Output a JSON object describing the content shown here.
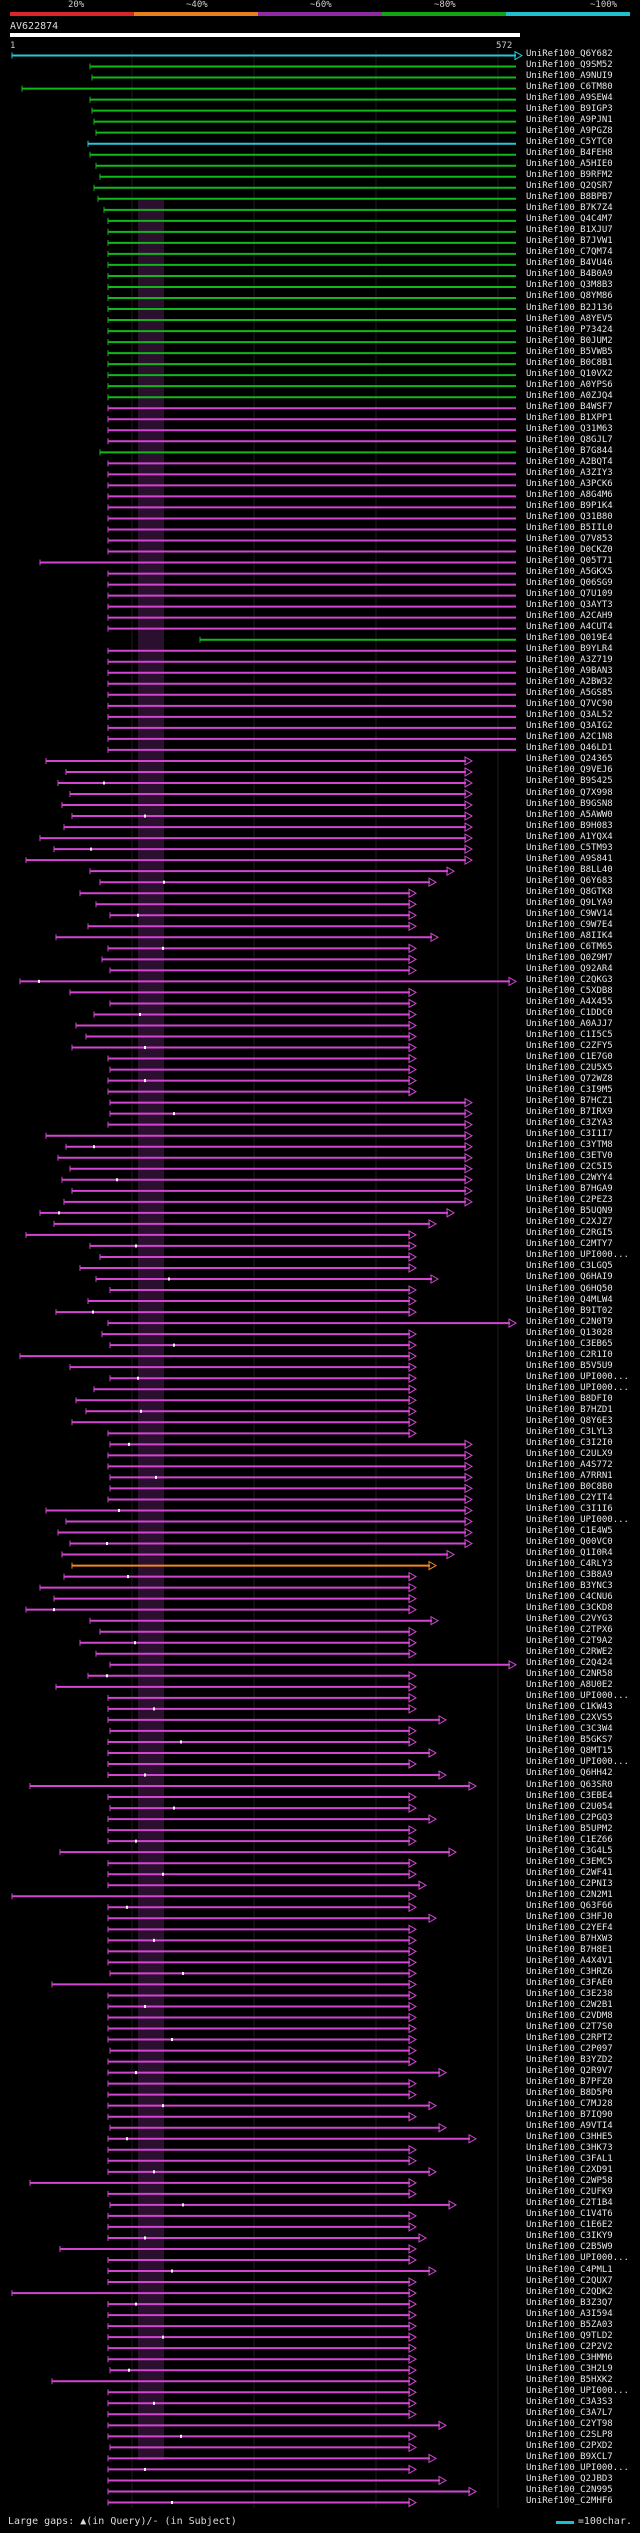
{
  "header": {
    "percent_labels": [
      "20%",
      "~40%",
      "~60%",
      "~80%",
      "~100%"
    ],
    "band_colors": [
      "#d9262c",
      "#e6821e",
      "#8e2aa4",
      "#12a414",
      "#1fbfcb"
    ],
    "query_id": "AV622874",
    "scale_start": "1",
    "scale_end": "572"
  },
  "colors": {
    "cyan": "#2bc6d6",
    "green": "#12b81a",
    "magenta": "#d246d2",
    "orange": "#f08820",
    "dark": "#6a2f72"
  },
  "hits": [
    {
      "label": "UniRef100_Q6Y682",
      "c": "cyan"
    },
    {
      "label": "UniRef100_Q9SM52",
      "c": "green"
    },
    {
      "label": "UniRef100_A9NUI9",
      "c": "green"
    },
    {
      "label": "UniRef100_C6TM80",
      "c": "green"
    },
    {
      "label": "UniRef100_A9SEW4",
      "c": "green"
    },
    {
      "label": "UniRef100_B9IGP3",
      "c": "green"
    },
    {
      "label": "UniRef100_A9PJN1",
      "c": "green"
    },
    {
      "label": "UniRef100_A9PGZ8",
      "c": "green"
    },
    {
      "label": "UniRef100_C5YTC0",
      "c": "cyan"
    },
    {
      "label": "UniRef100_B4FEH8",
      "c": "green"
    },
    {
      "label": "UniRef100_A5HIE0",
      "c": "green"
    },
    {
      "label": "UniRef100_B9RFM2",
      "c": "green"
    },
    {
      "label": "UniRef100_Q2QSR7",
      "c": "green"
    },
    {
      "label": "UniRef100_B8BPB7",
      "c": "green"
    },
    {
      "label": "UniRef100_B7K7Z4",
      "c": "green"
    },
    {
      "label": "UniRef100_Q4C4M7",
      "c": "green"
    },
    {
      "label": "UniRef100_B1XJU7",
      "c": "green"
    },
    {
      "label": "UniRef100_B7JVW1",
      "c": "green"
    },
    {
      "label": "UniRef100_C7QM74",
      "c": "green"
    },
    {
      "label": "UniRef100_B4VU46",
      "c": "green"
    },
    {
      "label": "UniRef100_B4B0A9",
      "c": "green"
    },
    {
      "label": "UniRef100_Q3M8B3",
      "c": "green"
    },
    {
      "label": "UniRef100_Q8YM86",
      "c": "green"
    },
    {
      "label": "UniRef100_B2J136",
      "c": "green"
    },
    {
      "label": "UniRef100_A8YEV5",
      "c": "green"
    },
    {
      "label": "UniRef100_P73424",
      "c": "green"
    },
    {
      "label": "UniRef100_B0JUM2",
      "c": "green"
    },
    {
      "label": "UniRef100_B5VWB5",
      "c": "green"
    },
    {
      "label": "UniRef100_B0C8B1",
      "c": "green"
    },
    {
      "label": "UniRef100_Q10VX2",
      "c": "green"
    },
    {
      "label": "UniRef100_A0YPS6",
      "c": "green"
    },
    {
      "label": "UniRef100_A0ZJQ4",
      "c": "green"
    },
    {
      "label": "UniRef100_B4WSF7",
      "c": "magenta"
    },
    {
      "label": "UniRef100_B1XPP1",
      "c": "magenta"
    },
    {
      "label": "UniRef100_Q31M63",
      "c": "magenta"
    },
    {
      "label": "UniRef100_Q8GJL7",
      "c": "magenta"
    },
    {
      "label": "UniRef100_B7G844",
      "c": "green"
    },
    {
      "label": "UniRef100_A2BQT4",
      "c": "magenta"
    },
    {
      "label": "UniRef100_A3ZIY3",
      "c": "magenta"
    },
    {
      "label": "UniRef100_A3PCK6",
      "c": "magenta"
    },
    {
      "label": "UniRef100_A8G4M6",
      "c": "magenta"
    },
    {
      "label": "UniRef100_B9P1K4",
      "c": "magenta"
    },
    {
      "label": "UniRef100_Q31B80",
      "c": "magenta"
    },
    {
      "label": "UniRef100_B5IIL0",
      "c": "magenta"
    },
    {
      "label": "UniRef100_Q7V853",
      "c": "magenta"
    },
    {
      "label": "UniRef100_D0CKZ0",
      "c": "magenta"
    },
    {
      "label": "UniRef100_Q05T71",
      "c": "magenta"
    },
    {
      "label": "UniRef100_A5GKX5",
      "c": "magenta"
    },
    {
      "label": "UniRef100_Q06SG9",
      "c": "magenta"
    },
    {
      "label": "UniRef100_Q7U109",
      "c": "magenta"
    },
    {
      "label": "UniRef100_Q3AYT3",
      "c": "magenta"
    },
    {
      "label": "UniRef100_A2CAH9",
      "c": "magenta"
    },
    {
      "label": "UniRef100_A4CUT4",
      "c": "magenta"
    },
    {
      "label": "UniRef100_Q019E4",
      "c": "green"
    },
    {
      "label": "UniRef100_B9YLR4",
      "c": "magenta"
    },
    {
      "label": "UniRef100_A3Z719",
      "c": "magenta"
    },
    {
      "label": "UniRef100_A9BAN3",
      "c": "magenta"
    },
    {
      "label": "UniRef100_A2BW32",
      "c": "magenta"
    },
    {
      "label": "UniRef100_A5GS85",
      "c": "magenta"
    },
    {
      "label": "UniRef100_Q7VC90",
      "c": "magenta"
    },
    {
      "label": "UniRef100_Q3AL52",
      "c": "magenta"
    },
    {
      "label": "UniRef100_Q3AIG2",
      "c": "magenta"
    },
    {
      "label": "UniRef100_A2C1N8",
      "c": "magenta"
    },
    {
      "label": "UniRef100_Q46LD1",
      "c": "magenta"
    },
    {
      "label": "UniRef100_Q24365",
      "c": "magenta"
    },
    {
      "label": "UniRef100_Q9VEJ6",
      "c": "magenta"
    },
    {
      "label": "UniRef100_B9S425",
      "c": "magenta"
    },
    {
      "label": "UniRef100_Q7X998",
      "c": "magenta"
    },
    {
      "label": "UniRef100_B9GSN8",
      "c": "magenta"
    },
    {
      "label": "UniRef100_A5AWW0",
      "c": "magenta"
    },
    {
      "label": "UniRef100_B9H083",
      "c": "magenta"
    },
    {
      "label": "UniRef100_A1YQX4",
      "c": "magenta"
    },
    {
      "label": "UniRef100_C5TM93",
      "c": "magenta"
    },
    {
      "label": "UniRef100_A9S841",
      "c": "magenta"
    },
    {
      "label": "UniRef100_B8LL40",
      "c": "magenta"
    },
    {
      "label": "UniRef100_Q6Y683",
      "c": "magenta"
    },
    {
      "label": "UniRef100_Q8GTK8",
      "c": "magenta"
    },
    {
      "label": "UniRef100_Q9LYA9",
      "c": "magenta"
    },
    {
      "label": "UniRef100_C9WV14",
      "c": "magenta"
    },
    {
      "label": "UniRef100_C9W7E4",
      "c": "magenta"
    },
    {
      "label": "UniRef100_A8IIK4",
      "c": "magenta"
    },
    {
      "label": "UniRef100_C6TM65",
      "c": "magenta"
    },
    {
      "label": "UniRef100_Q0Z9M7",
      "c": "magenta"
    },
    {
      "label": "UniRef100_Q92AR4",
      "c": "magenta"
    },
    {
      "label": "UniRef100_C2QKG3",
      "c": "magenta"
    },
    {
      "label": "UniRef100_C5XDB8",
      "c": "magenta"
    },
    {
      "label": "UniRef100_A4X455",
      "c": "magenta"
    },
    {
      "label": "UniRef100_C1DDC0",
      "c": "magenta"
    },
    {
      "label": "UniRef100_A0AJJ7",
      "c": "magenta"
    },
    {
      "label": "UniRef100_C1I5C5",
      "c": "magenta"
    },
    {
      "label": "UniRef100_C2ZFY5",
      "c": "magenta"
    },
    {
      "label": "UniRef100_C1E7G0",
      "c": "magenta"
    },
    {
      "label": "UniRef100_C2U5X5",
      "c": "magenta"
    },
    {
      "label": "UniRef100_Q72WZ8",
      "c": "magenta"
    },
    {
      "label": "UniRef100_C3I9M5",
      "c": "magenta"
    },
    {
      "label": "UniRef100_B7HCZ1",
      "c": "magenta"
    },
    {
      "label": "UniRef100_B7IRX9",
      "c": "magenta"
    },
    {
      "label": "UniRef100_C3ZYA3",
      "c": "magenta"
    },
    {
      "label": "UniRef100_C3I1I7",
      "c": "magenta"
    },
    {
      "label": "UniRef100_C3YTM8",
      "c": "magenta"
    },
    {
      "label": "UniRef100_C3ETV0",
      "c": "magenta"
    },
    {
      "label": "UniRef100_C2C5I5",
      "c": "magenta"
    },
    {
      "label": "UniRef100_C2WYY4",
      "c": "magenta"
    },
    {
      "label": "UniRef100_B7HGA9",
      "c": "magenta"
    },
    {
      "label": "UniRef100_C2PEZ3",
      "c": "magenta"
    },
    {
      "label": "UniRef100_B5UQN9",
      "c": "magenta"
    },
    {
      "label": "UniRef100_C2XJZ7",
      "c": "magenta"
    },
    {
      "label": "UniRef100_C2RGI5",
      "c": "magenta"
    },
    {
      "label": "UniRef100_C2MTY7",
      "c": "magenta"
    },
    {
      "label": "UniRef100_UPI000...",
      "c": "magenta"
    },
    {
      "label": "UniRef100_C3LGQ5",
      "c": "magenta"
    },
    {
      "label": "UniRef100_Q6HAI9",
      "c": "magenta"
    },
    {
      "label": "UniRef100_Q6HQ50",
      "c": "magenta"
    },
    {
      "label": "UniRef100_Q4MLW4",
      "c": "magenta"
    },
    {
      "label": "UniRef100_B9IT02",
      "c": "magenta"
    },
    {
      "label": "UniRef100_C2N0T9",
      "c": "magenta"
    },
    {
      "label": "UniRef100_Q13028",
      "c": "magenta"
    },
    {
      "label": "UniRef100_C3EB65",
      "c": "magenta"
    },
    {
      "label": "UniRef100_C2R1I0",
      "c": "magenta"
    },
    {
      "label": "UniRef100_B5V5U9",
      "c": "magenta"
    },
    {
      "label": "UniRef100_UPI000...",
      "c": "magenta"
    },
    {
      "label": "UniRef100_UPI000...",
      "c": "magenta"
    },
    {
      "label": "UniRef100_B8DFI0",
      "c": "magenta"
    },
    {
      "label": "UniRef100_B7HZD1",
      "c": "magenta"
    },
    {
      "label": "UniRef100_Q8Y6E3",
      "c": "magenta"
    },
    {
      "label": "UniRef100_C3LYL3",
      "c": "magenta"
    },
    {
      "label": "UniRef100_C3I2I0",
      "c": "magenta"
    },
    {
      "label": "UniRef100_C2ULX9",
      "c": "magenta"
    },
    {
      "label": "UniRef100_A4S772",
      "c": "magenta"
    },
    {
      "label": "UniRef100_A7RRN1",
      "c": "magenta"
    },
    {
      "label": "UniRef100_B0C8B0",
      "c": "magenta"
    },
    {
      "label": "UniRef100_C2YIT4",
      "c": "magenta"
    },
    {
      "label": "UniRef100_C3I1I6",
      "c": "magenta"
    },
    {
      "label": "UniRef100_UPI000...",
      "c": "magenta"
    },
    {
      "label": "UniRef100_C1E4W5",
      "c": "magenta"
    },
    {
      "label": "UniRef100_Q00VC0",
      "c": "magenta"
    },
    {
      "label": "UniRef100_Q1I0R4",
      "c": "magenta"
    },
    {
      "label": "UniRef100_C4RLY3",
      "c": "orange"
    },
    {
      "label": "UniRef100_C3B8A9",
      "c": "magenta"
    },
    {
      "label": "UniRef100_B3YNC3",
      "c": "magenta"
    },
    {
      "label": "UniRef100_C4CNU6",
      "c": "magenta"
    },
    {
      "label": "UniRef100_C3CKD8",
      "c": "magenta"
    },
    {
      "label": "UniRef100_C2VYG3",
      "c": "magenta"
    },
    {
      "label": "UniRef100_C2TPX6",
      "c": "magenta"
    },
    {
      "label": "UniRef100_C2T9A2",
      "c": "magenta"
    },
    {
      "label": "UniRef100_C2RWE2",
      "c": "magenta"
    },
    {
      "label": "UniRef100_C2Q424",
      "c": "magenta"
    },
    {
      "label": "UniRef100_C2NR58",
      "c": "magenta"
    },
    {
      "label": "UniRef100_A8U0E2",
      "c": "magenta"
    },
    {
      "label": "UniRef100_UPI000...",
      "c": "magenta"
    },
    {
      "label": "UniRef100_C1KW43",
      "c": "magenta"
    },
    {
      "label": "UniRef100_C2XVS5",
      "c": "magenta"
    },
    {
      "label": "UniRef100_C3C3W4",
      "c": "magenta"
    },
    {
      "label": "UniRef100_B5GKS7",
      "c": "magenta"
    },
    {
      "label": "UniRef100_Q8MT15",
      "c": "magenta"
    },
    {
      "label": "UniRef100_UPI000...",
      "c": "magenta"
    },
    {
      "label": "UniRef100_Q6HH42",
      "c": "magenta"
    },
    {
      "label": "UniRef100_Q63SR0",
      "c": "magenta"
    },
    {
      "label": "UniRef100_C3EBE4",
      "c": "magenta"
    },
    {
      "label": "UniRef100_C2U054",
      "c": "magenta"
    },
    {
      "label": "UniRef100_C2PGQ3",
      "c": "magenta"
    },
    {
      "label": "UniRef100_B5UPM2",
      "c": "magenta"
    },
    {
      "label": "UniRef100_C1EZ66",
      "c": "magenta"
    },
    {
      "label": "UniRef100_C3G4L5",
      "c": "magenta"
    },
    {
      "label": "UniRef100_C3EMC5",
      "c": "magenta"
    },
    {
      "label": "UniRef100_C2WF41",
      "c": "magenta"
    },
    {
      "label": "UniRef100_C2PNI3",
      "c": "magenta"
    },
    {
      "label": "UniRef100_C2N2M1",
      "c": "magenta"
    },
    {
      "label": "UniRef100_Q63F66",
      "c": "magenta"
    },
    {
      "label": "UniRef100_C3HFJ0",
      "c": "magenta"
    },
    {
      "label": "UniRef100_C2YEF4",
      "c": "magenta"
    },
    {
      "label": "UniRef100_B7HXW3",
      "c": "magenta"
    },
    {
      "label": "UniRef100_B7H8E1",
      "c": "magenta"
    },
    {
      "label": "UniRef100_A4X4V1",
      "c": "magenta"
    },
    {
      "label": "UniRef100_C3HRZ6",
      "c": "magenta"
    },
    {
      "label": "UniRef100_C3FAE0",
      "c": "magenta"
    },
    {
      "label": "UniRef100_C3E238",
      "c": "magenta"
    },
    {
      "label": "UniRef100_C2W2B1",
      "c": "magenta"
    },
    {
      "label": "UniRef100_C2VDM8",
      "c": "magenta"
    },
    {
      "label": "UniRef100_C2T7S0",
      "c": "magenta"
    },
    {
      "label": "UniRef100_C2RPT2",
      "c": "magenta"
    },
    {
      "label": "UniRef100_C2P097",
      "c": "magenta"
    },
    {
      "label": "UniRef100_B3YZD2",
      "c": "magenta"
    },
    {
      "label": "UniRef100_Q2R9V7",
      "c": "magenta"
    },
    {
      "label": "UniRef100_B7PFZ0",
      "c": "magenta"
    },
    {
      "label": "UniRef100_B8D5P0",
      "c": "magenta"
    },
    {
      "label": "UniRef100_C7MJ28",
      "c": "magenta"
    },
    {
      "label": "UniRef100_B7IQ90",
      "c": "magenta"
    },
    {
      "label": "UniRef100_A9VTI4",
      "c": "magenta"
    },
    {
      "label": "UniRef100_C3HHE5",
      "c": "magenta"
    },
    {
      "label": "UniRef100_C3HK73",
      "c": "magenta"
    },
    {
      "label": "UniRef100_C3FAL1",
      "c": "magenta"
    },
    {
      "label": "UniRef100_C2XD91",
      "c": "magenta"
    },
    {
      "label": "UniRef100_C2WP58",
      "c": "magenta"
    },
    {
      "label": "UniRef100_C2UFK9",
      "c": "magenta"
    },
    {
      "label": "UniRef100_C2T1B4",
      "c": "magenta"
    },
    {
      "label": "UniRef100_C1V4T6",
      "c": "magenta"
    },
    {
      "label": "UniRef100_C1E6E2",
      "c": "magenta"
    },
    {
      "label": "UniRef100_C3IKY9",
      "c": "magenta"
    },
    {
      "label": "UniRef100_C2B5W9",
      "c": "magenta"
    },
    {
      "label": "UniRef100_UPI000...",
      "c": "magenta"
    },
    {
      "label": "UniRef100_C4PML1",
      "c": "magenta"
    },
    {
      "label": "UniRef100_C2QUX7",
      "c": "magenta"
    },
    {
      "label": "UniRef100_C2QDK2",
      "c": "magenta"
    },
    {
      "label": "UniRef100_B3Z3Q7",
      "c": "magenta"
    },
    {
      "label": "UniRef100_A3I594",
      "c": "magenta"
    },
    {
      "label": "UniRef100_B5ZA03",
      "c": "magenta"
    },
    {
      "label": "UniRef100_Q9TLD2",
      "c": "magenta"
    },
    {
      "label": "UniRef100_C2P2V2",
      "c": "magenta"
    },
    {
      "label": "UniRef100_C3HMM6",
      "c": "magenta"
    },
    {
      "label": "UniRef100_C3H2L9",
      "c": "magenta"
    },
    {
      "label": "UniRef100_B5HXK2",
      "c": "magenta"
    },
    {
      "label": "UniRef100_UPI000...",
      "c": "magenta"
    },
    {
      "label": "UniRef100_C3A3S3",
      "c": "magenta"
    },
    {
      "label": "UniRef100_C3A7L7",
      "c": "magenta"
    },
    {
      "label": "UniRef100_C2YT98",
      "c": "magenta"
    },
    {
      "label": "UniRef100_C2SLP8",
      "c": "magenta"
    },
    {
      "label": "UniRef100_C2PXD2",
      "c": "magenta"
    },
    {
      "label": "UniRef100_B9XCL7",
      "c": "magenta"
    },
    {
      "label": "UniRef100_UPI000...",
      "c": "magenta"
    },
    {
      "label": "UniRef100_Q2JBD3",
      "c": "magenta"
    },
    {
      "label": "UniRef100_C2N995",
      "c": "magenta"
    },
    {
      "label": "UniRef100_C2MHF6",
      "c": "magenta"
    }
  ],
  "footer": {
    "legend": "Large gaps: ▲(in Query)/- (in Subject)",
    "scale_note": "=100char."
  }
}
